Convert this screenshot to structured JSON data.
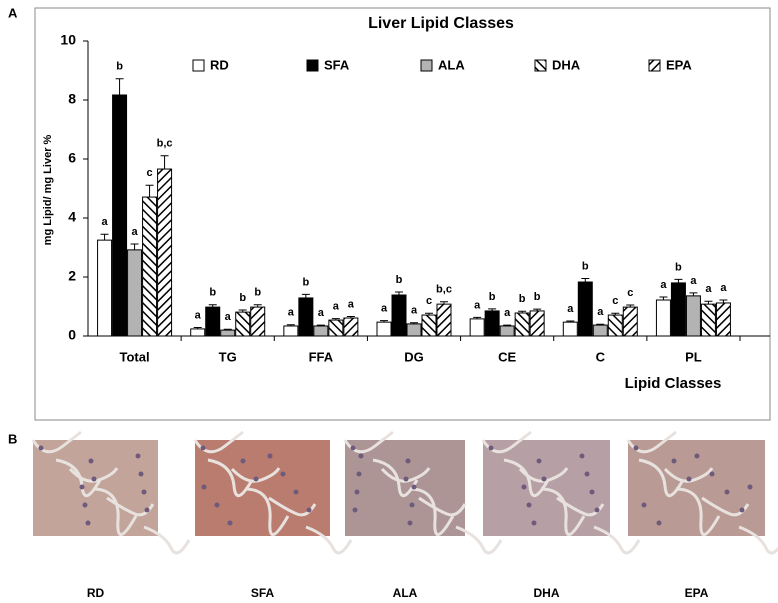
{
  "chart_data": {
    "type": "bar",
    "title": "Liver Lipid Classes",
    "y_label": "mg Lipid/ mg Liver %",
    "x_label": "Lipid Classes",
    "categories": [
      "Total",
      "TG",
      "FFA",
      "DG",
      "CE",
      "C",
      "PL"
    ],
    "ylim": [
      0,
      10
    ],
    "yticks": [
      0,
      2,
      4,
      6,
      8,
      10
    ],
    "legend": "top",
    "series": [
      {
        "name": "RD",
        "color": "#ffffff",
        "hatch": "none",
        "values": [
          3.25,
          0.24,
          0.34,
          0.47,
          0.58,
          0.47,
          1.22
        ],
        "errors": [
          0.2,
          0.05,
          0.04,
          0.05,
          0.05,
          0.04,
          0.1
        ],
        "letters": [
          "a",
          "a",
          "a",
          "a",
          "a",
          "a",
          "a"
        ]
      },
      {
        "name": "SFA",
        "color": "#000000",
        "hatch": "none",
        "values": [
          8.17,
          0.98,
          1.29,
          1.39,
          0.85,
          1.83,
          1.8
        ],
        "errors": [
          0.55,
          0.08,
          0.12,
          0.1,
          0.07,
          0.12,
          0.12
        ],
        "letters": [
          "b",
          "b",
          "b",
          "b",
          "b",
          "b",
          "b"
        ]
      },
      {
        "name": "ALA",
        "color": "#b3b3b3",
        "hatch": "none",
        "values": [
          2.92,
          0.2,
          0.34,
          0.41,
          0.34,
          0.37,
          1.36
        ],
        "errors": [
          0.2,
          0.03,
          0.03,
          0.04,
          0.03,
          0.03,
          0.1
        ],
        "letters": [
          "a",
          "a",
          "a",
          "a",
          "a",
          "a",
          "a"
        ]
      },
      {
        "name": "DHA",
        "color": "#000000",
        "hatch": "backslash",
        "values": [
          4.71,
          0.81,
          0.54,
          0.71,
          0.78,
          0.71,
          1.08
        ],
        "errors": [
          0.4,
          0.07,
          0.05,
          0.06,
          0.06,
          0.06,
          0.1
        ],
        "letters": [
          "c",
          "b",
          "a",
          "c",
          "b",
          "c",
          "a"
        ]
      },
      {
        "name": "EPA",
        "color": "#000000",
        "hatch": "slash",
        "values": [
          5.66,
          0.98,
          0.61,
          1.08,
          0.85,
          0.98,
          1.12
        ],
        "errors": [
          0.45,
          0.08,
          0.05,
          0.08,
          0.06,
          0.07,
          0.1
        ],
        "letters": [
          "b,c",
          "b",
          "a",
          "b,c",
          "b",
          "c",
          "a"
        ]
      }
    ]
  },
  "figure": {
    "panel_a": "A",
    "panel_b": "B",
    "micrographs": [
      "RD",
      "SFA",
      "ALA",
      "DHA",
      "EPA"
    ]
  }
}
